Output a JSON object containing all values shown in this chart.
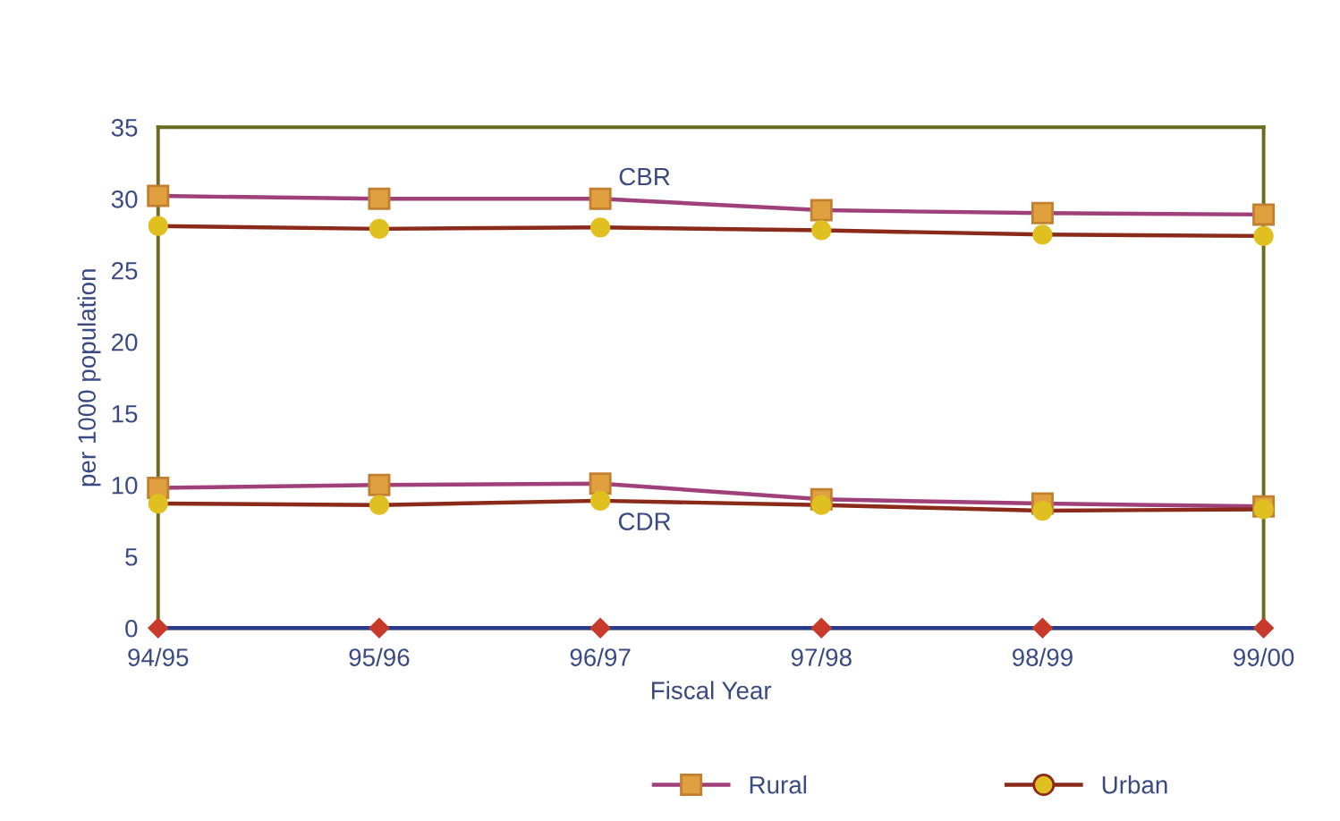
{
  "chart_data": {
    "type": "line",
    "xlabel": "Fiscal Year",
    "ylabel": "per 1000 population",
    "categories": [
      "94/95",
      "95/96",
      "96/97",
      "97/98",
      "98/99",
      "99/00"
    ],
    "series": [
      {
        "name": "Rural",
        "color": "#a0407a",
        "marker": "square",
        "colors": [
          "#e0a040",
          "#e0a040",
          "#e0a040",
          "#e0a040",
          "#e0a040",
          "#e0a040"
        ],
        "values": [
          30.2,
          30.0,
          30.0,
          29.2,
          29.0,
          28.9
        ]
      },
      {
        "name": "Urban",
        "color": "#8b2a1a",
        "marker": "circle",
        "colors": [
          "#e0c020",
          "#e0c020",
          "#e0c020",
          "#e0c020",
          "#e0c020",
          "#e0c020"
        ],
        "values": [
          28.1,
          27.9,
          28.0,
          27.8,
          27.5,
          27.4
        ]
      },
      {
        "color": "#a0407a",
        "marker": "square",
        "colors": [
          "#e0a040",
          "#e0a040",
          "#e0a040",
          "#e0a040",
          "#e0a040",
          "#e0a040"
        ],
        "values": [
          9.8,
          10.0,
          10.1,
          9.0,
          8.7,
          8.5
        ]
      },
      {
        "color": "#8b2a1a",
        "marker": "circle",
        "colors": [
          "#e0c020",
          "#e0c020",
          "#e0c020",
          "#e0c020",
          "#e0c020",
          "#e0c020"
        ],
        "values": [
          8.7,
          8.6,
          8.9,
          8.6,
          8.2,
          8.3
        ]
      },
      {
        "color": "#2a3a8a",
        "marker": "diamond",
        "colors": [
          "#c83a2a",
          "#c83a2a",
          "#c83a2a",
          "#c83a2a",
          "#c83a2a",
          "#c83a2a"
        ],
        "values": [
          0,
          0,
          0,
          0,
          0,
          0
        ]
      }
    ],
    "annotations": [
      "CBR",
      "CDR"
    ],
    "ylim": [
      0,
      35
    ],
    "yticks": [
      0,
      5,
      10,
      15,
      20,
      25,
      30,
      35
    ],
    "grid": false,
    "legend": "bottom"
  }
}
